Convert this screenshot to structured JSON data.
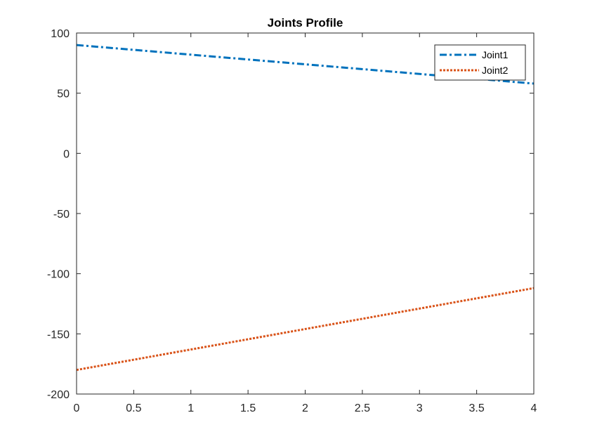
{
  "chart_data": {
    "type": "line",
    "title": "Joints Profile",
    "xlabel": "",
    "ylabel": "",
    "xlim": [
      0,
      4
    ],
    "ylim": [
      -200,
      100
    ],
    "xticks": [
      "0",
      "0.5",
      "1",
      "1.5",
      "2",
      "2.5",
      "3",
      "3.5",
      "4"
    ],
    "yticks": [
      "-200",
      "-150",
      "-100",
      "-50",
      "0",
      "50",
      "100"
    ],
    "grid": false,
    "legend_position": "top-right",
    "series": [
      {
        "name": "Joint1",
        "x": [
          0,
          4
        ],
        "y": [
          90,
          58
        ],
        "color": "#0072BD",
        "style": "dash-dot"
      },
      {
        "name": "Joint2",
        "x": [
          0,
          4
        ],
        "y": [
          -180,
          -112
        ],
        "color": "#D95319",
        "style": "dotted"
      }
    ]
  }
}
